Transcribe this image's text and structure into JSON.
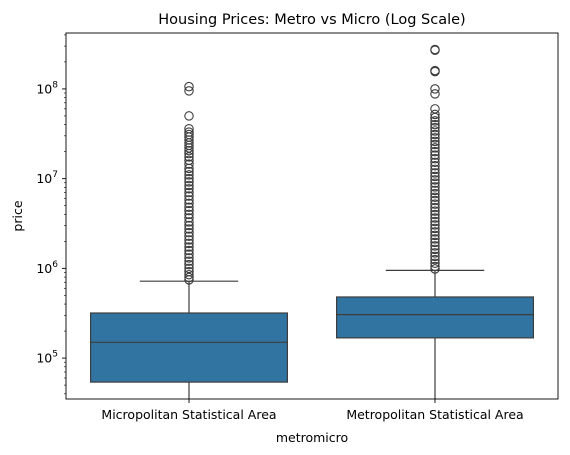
{
  "chart_data": {
    "type": "boxplot",
    "title": "Housing Prices: Metro vs Micro (Log Scale)",
    "xlabel": "metromicro",
    "ylabel": "price",
    "yscale": "log",
    "ylim": [
      35000,
      420000000
    ],
    "yticks": [
      {
        "value": 100000,
        "base": "10",
        "exp": "5"
      },
      {
        "value": 1000000,
        "base": "10",
        "exp": "6"
      },
      {
        "value": 10000000,
        "base": "10",
        "exp": "7"
      },
      {
        "value": 100000000,
        "base": "10",
        "exp": "8"
      }
    ],
    "categories": [
      "Micropolitan Statistical Area",
      "Metropolitan Statistical Area"
    ],
    "box_color": "#3274a1",
    "boxes": [
      {
        "category": "Micropolitan Statistical Area",
        "whisker_low": 35000,
        "q1": 54000,
        "median": 150000,
        "q3": 318000,
        "whisker_high": 720000,
        "outliers": [
          106000000,
          95000000,
          50000000,
          36000000,
          33000000,
          31000000,
          29000000,
          27000000,
          25000000,
          23500000,
          22000000,
          20500000,
          19000000,
          17500000,
          16000000,
          14500000,
          13000000,
          12000000,
          11000000,
          10000000,
          9200000,
          8400000,
          7700000,
          7000000,
          6400000,
          5800000,
          5300000,
          4800000,
          4400000,
          4000000,
          3650000,
          3300000,
          3000000,
          2750000,
          2500000,
          2280000,
          2080000,
          1900000,
          1730000,
          1580000,
          1440000,
          1310000,
          1200000,
          1100000,
          1000000,
          920000,
          850000,
          790000,
          745000
        ]
      },
      {
        "category": "Metropolitan Statistical Area",
        "whisker_low": 35000,
        "q1": 168000,
        "median": 305000,
        "q3": 480000,
        "whisker_high": 950000,
        "outliers": [
          275000000,
          270000000,
          160000000,
          156000000,
          100000000,
          88000000,
          60000000,
          52000000,
          48000000,
          44000000,
          40000000,
          37000000,
          34000000,
          31000000,
          28500000,
          26000000,
          24000000,
          22000000,
          20000000,
          18300000,
          16700000,
          15200000,
          13900000,
          12700000,
          11600000,
          10600000,
          9700000,
          8900000,
          8100000,
          7400000,
          6800000,
          6200000,
          5700000,
          5200000,
          4750000,
          4350000,
          3980000,
          3640000,
          3330000,
          3050000,
          2790000,
          2550000,
          2330000,
          2130000,
          1950000,
          1780000,
          1630000,
          1490000,
          1360000,
          1250000,
          1140000,
          1050000,
          985000
        ]
      }
    ]
  }
}
